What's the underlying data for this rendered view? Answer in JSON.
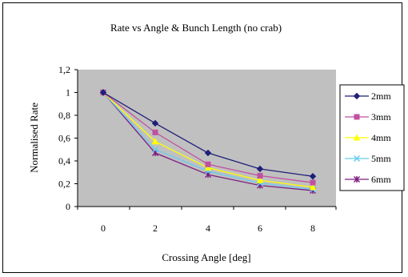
{
  "chart_data": {
    "type": "line",
    "title": "Rate vs Angle & Bunch Length (no crab)",
    "xlabel": "Crossing Angle [deg]",
    "ylabel": "Normalised Rate",
    "x": [
      0,
      2,
      4,
      6,
      8
    ],
    "x_ticks": [
      "0",
      "2",
      "4",
      "6",
      "8"
    ],
    "ylim": [
      0,
      1.2
    ],
    "y_ticks": [
      "0",
      "0,2",
      "0,4",
      "0,6",
      "0,8",
      "1",
      "1,2"
    ],
    "grid": false,
    "plot_background": "#c0c0c0",
    "legend_position": "right",
    "series": [
      {
        "name": "2mm",
        "color": "#1f1f7a",
        "marker": "diamond",
        "values": [
          1.0,
          0.73,
          0.47,
          0.33,
          0.265
        ]
      },
      {
        "name": "3mm",
        "color": "#c050a0",
        "marker": "square",
        "values": [
          1.0,
          0.65,
          0.37,
          0.27,
          0.21
        ]
      },
      {
        "name": "4mm",
        "color": "#ffff00",
        "marker": "triangle",
        "values": [
          1.0,
          0.57,
          0.34,
          0.23,
          0.17
        ]
      },
      {
        "name": "5mm",
        "color": "#66ccee",
        "marker": "x",
        "values": [
          1.0,
          0.5,
          0.31,
          0.205,
          0.15
        ]
      },
      {
        "name": "6mm",
        "color": "#7f1f7f",
        "marker": "star",
        "values": [
          1.0,
          0.47,
          0.28,
          0.185,
          0.14
        ]
      }
    ]
  }
}
